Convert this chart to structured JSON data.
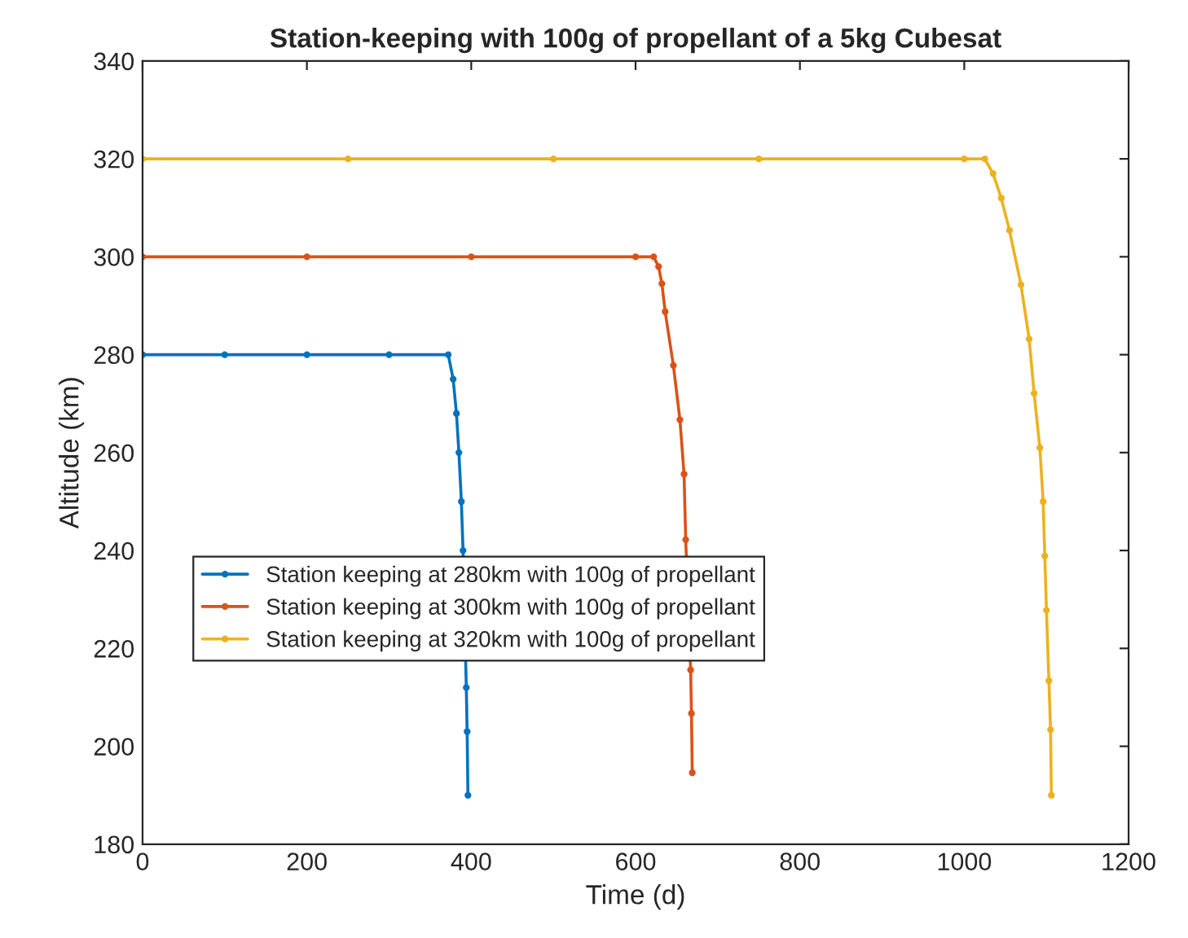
{
  "chart_data": {
    "type": "line",
    "title": "Station-keeping with 100g of propellant of a 5kg Cubesat",
    "xlabel": "Time (d)",
    "ylabel": "Altitude (km)",
    "xlim": [
      0,
      1200
    ],
    "xticks": [
      0,
      200,
      400,
      600,
      800,
      1000,
      1200
    ],
    "ylim": [
      180,
      340
    ],
    "yticks": [
      180,
      200,
      220,
      240,
      260,
      280,
      300,
      320,
      340
    ],
    "grid": false,
    "legend": "bottom left",
    "marker": "circle",
    "line_style": "solid",
    "series": [
      {
        "name": "Station keeping at 280km with 100g of propellant",
        "color": "#0072bd",
        "x": [
          0,
          100,
          200,
          300,
          372,
          378,
          382,
          385,
          388,
          390,
          392,
          393,
          394,
          395,
          396
        ],
        "values": [
          280,
          280,
          280,
          280,
          280,
          275,
          268,
          260,
          250,
          240,
          null,
          null,
          212,
          203,
          190
        ]
      },
      {
        "name": "Station keeping at 300km with 100g of propellant",
        "color": "#d95319",
        "x": [
          0,
          200,
          400,
          600,
          622,
          628,
          632,
          636,
          646,
          654,
          659,
          661,
          667,
          668,
          669
        ],
        "values": [
          300,
          300,
          300,
          300,
          300,
          298,
          294.5,
          288.8,
          277.8,
          266.7,
          255.6,
          242.2,
          215.6,
          206.7,
          194.6
        ]
      },
      {
        "name": "Station keeping at 320km with 100g of propellant",
        "color": "#edb120",
        "x": [
          0,
          250,
          500,
          750,
          1000,
          1025,
          1035,
          1045,
          1055,
          1069,
          1079,
          1085,
          1092,
          1096,
          1098,
          1100,
          1103,
          1105,
          1106
        ],
        "values": [
          320,
          320,
          320,
          320,
          320,
          320,
          317,
          312,
          305.4,
          294.3,
          283.2,
          272.1,
          261.0,
          250.0,
          238.9,
          227.8,
          213.4,
          203.4,
          190
        ]
      }
    ]
  }
}
